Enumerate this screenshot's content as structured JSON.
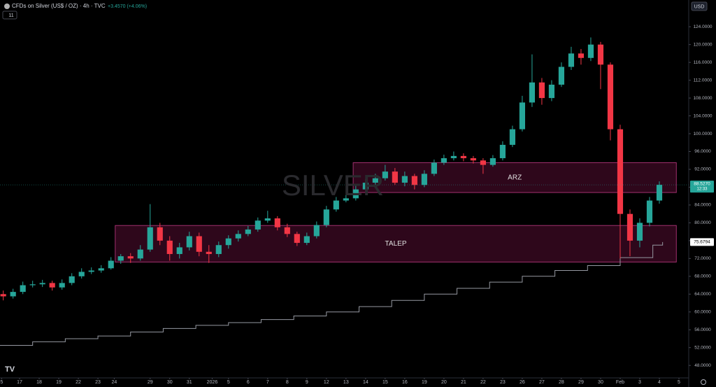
{
  "chart_data": {
    "type": "candlestick",
    "title": "CFDs on Silver (US$ / OZ) · 4h · TVC",
    "change": "+3.4570 (+4.06%)",
    "interval_badge": "11",
    "currency": "USD",
    "watermark": "SILVER",
    "xlim": [
      0,
      211
    ],
    "ylim": [
      45.2,
      130
    ],
    "grid": false,
    "up_color": "#26a69a",
    "down_color": "#f23645",
    "xticks": [
      {
        "value": 0.5,
        "label": "5"
      },
      {
        "value": 6,
        "label": "17"
      },
      {
        "value": 12,
        "label": "18"
      },
      {
        "value": 18,
        "label": "19"
      },
      {
        "value": 24,
        "label": "22"
      },
      {
        "value": 30,
        "label": "23"
      },
      {
        "value": 35,
        "label": "24"
      },
      {
        "value": 46,
        "label": "29"
      },
      {
        "value": 52,
        "label": "30"
      },
      {
        "value": 58,
        "label": "31"
      },
      {
        "value": 65,
        "label": "2026"
      },
      {
        "value": 70,
        "label": "5"
      },
      {
        "value": 76,
        "label": "6"
      },
      {
        "value": 82,
        "label": "7"
      },
      {
        "value": 88,
        "label": "8"
      },
      {
        "value": 94,
        "label": "9"
      },
      {
        "value": 100,
        "label": "12"
      },
      {
        "value": 106,
        "label": "13"
      },
      {
        "value": 112,
        "label": "14"
      },
      {
        "value": 118,
        "label": "15"
      },
      {
        "value": 124,
        "label": "16"
      },
      {
        "value": 130,
        "label": "19"
      },
      {
        "value": 136,
        "label": "20"
      },
      {
        "value": 142,
        "label": "21"
      },
      {
        "value": 148,
        "label": "22"
      },
      {
        "value": 154,
        "label": "23"
      },
      {
        "value": 160,
        "label": "26"
      },
      {
        "value": 166,
        "label": "27"
      },
      {
        "value": 172,
        "label": "28"
      },
      {
        "value": 178,
        "label": "29"
      },
      {
        "value": 184,
        "label": "30"
      },
      {
        "value": 190,
        "label": "Feb"
      },
      {
        "value": 196,
        "label": "3"
      },
      {
        "value": 202,
        "label": "4"
      },
      {
        "value": 208,
        "label": "5"
      }
    ],
    "yticks": [
      {
        "value": 48,
        "label": "48.0000"
      },
      {
        "value": 52,
        "label": "52.0000"
      },
      {
        "value": 56,
        "label": "56.0000"
      },
      {
        "value": 60,
        "label": "60.0000"
      },
      {
        "value": 64,
        "label": "64.0000"
      },
      {
        "value": 68,
        "label": "68.0000"
      },
      {
        "value": 72,
        "label": "72.0000"
      },
      {
        "value": 76,
        "label": "76.0000"
      },
      {
        "value": 80,
        "label": "80.0000"
      },
      {
        "value": 84,
        "label": "84.0000"
      },
      {
        "value": 88,
        "label": "88.0000"
      },
      {
        "value": 92,
        "label": "92.0000"
      },
      {
        "value": 96,
        "label": "96.0000"
      },
      {
        "value": 100,
        "label": "100.0000"
      },
      {
        "value": 104,
        "label": "104.0000"
      },
      {
        "value": 108,
        "label": "108.0000"
      },
      {
        "value": 112,
        "label": "112.0000"
      },
      {
        "value": 116,
        "label": "116.0000"
      },
      {
        "value": 120,
        "label": "120.0000"
      },
      {
        "value": 124,
        "label": "124.0000"
      }
    ],
    "x": [
      1,
      4,
      7,
      10,
      13,
      16,
      19,
      22,
      25,
      28,
      31,
      34,
      37,
      40,
      43,
      46,
      49,
      52,
      55,
      58,
      61,
      64,
      67,
      70,
      73,
      76,
      79,
      82,
      85,
      88,
      91,
      94,
      97,
      100,
      103,
      106,
      109,
      112,
      115,
      118,
      121,
      124,
      127,
      130,
      133,
      136,
      139,
      142,
      145,
      148,
      151,
      154,
      157,
      160,
      163,
      166,
      169,
      172,
      175,
      178,
      181,
      184,
      187,
      190,
      193,
      196,
      199,
      202
    ],
    "open": [
      64,
      63.5,
      64.5,
      66,
      66.2,
      66.5,
      65.5,
      66.5,
      68,
      69,
      69.3,
      69.8,
      71.5,
      72.5,
      72,
      74,
      79,
      76,
      73,
      74.5,
      77,
      73.5,
      73,
      75,
      76.5,
      77.5,
      78.5,
      80.5,
      81,
      79,
      77.5,
      75.5,
      77,
      79.5,
      83,
      85,
      85.5,
      87.5,
      89,
      90,
      91.5,
      89,
      90.5,
      88.5,
      91,
      93.5,
      94.5,
      95,
      94.5,
      94,
      93,
      94.5,
      97.5,
      101,
      107,
      111.5,
      108,
      111,
      115,
      118,
      117,
      120,
      115.5,
      101,
      82,
      76,
      80,
      85
    ],
    "high": [
      64.8,
      65.2,
      66.8,
      67,
      67.2,
      67,
      67.3,
      68.7,
      69.8,
      70,
      70.5,
      72.3,
      73,
      73.2,
      75,
      84.2,
      80,
      77,
      75.5,
      78,
      77.8,
      75,
      75.8,
      77.2,
      78.3,
      79.3,
      81.2,
      82.7,
      81.5,
      79.8,
      78,
      77.8,
      80.3,
      83.8,
      85.8,
      86.3,
      88.3,
      89.8,
      91,
      93,
      92.3,
      91.5,
      91,
      91.8,
      94.2,
      95.3,
      96,
      95.6,
      95,
      94.5,
      95.2,
      98.3,
      101.8,
      108.5,
      117.8,
      112.5,
      112,
      116,
      119.5,
      119,
      121.6,
      120.6,
      116,
      102,
      83,
      81,
      85.8,
      89.3
    ],
    "low": [
      62.6,
      63,
      64,
      65.5,
      65.6,
      64.8,
      65,
      66,
      67.5,
      68.5,
      68.8,
      69.5,
      70.8,
      71,
      71.5,
      73.5,
      75,
      71.5,
      72,
      73.8,
      72.5,
      71,
      72.3,
      74.2,
      75.8,
      77,
      78,
      80,
      78.3,
      76.8,
      74.8,
      75,
      76.5,
      79,
      82.5,
      84.6,
      85,
      87,
      88.3,
      89.5,
      88.5,
      88.2,
      87.5,
      88,
      90.5,
      93,
      94,
      93.8,
      93.3,
      91,
      92.6,
      94,
      97,
      100.5,
      106,
      106.5,
      107.3,
      110.5,
      114.3,
      115.5,
      116.3,
      110,
      98.5,
      72,
      72.5,
      74.5,
      79.2,
      84.3
    ],
    "close": [
      63.5,
      64.5,
      66,
      66.2,
      66.5,
      65.5,
      66.5,
      68,
      69,
      69.3,
      69.8,
      71.5,
      72.5,
      72,
      74,
      79,
      76,
      73,
      74.5,
      77,
      73.5,
      73,
      75,
      76.5,
      77.5,
      78.5,
      80.5,
      81,
      79,
      77.5,
      75.5,
      77,
      79.5,
      83,
      85,
      85.5,
      87.5,
      89,
      90,
      91.5,
      89,
      90.5,
      88.5,
      91,
      93.5,
      94.5,
      95,
      94.5,
      94,
      93,
      94.5,
      97.5,
      101,
      107,
      111.5,
      108,
      111,
      115,
      118,
      117,
      120,
      115.5,
      101,
      82,
      76,
      80,
      85,
      88.527
    ],
    "last_label": "88.5270",
    "countdown": "12:33",
    "series": [
      {
        "type": "line",
        "step": true,
        "color": "#9598a1",
        "x": [
          0,
          10,
          20,
          30,
          40,
          50,
          60,
          70,
          80,
          90,
          100,
          110,
          120,
          130,
          140,
          150,
          160,
          170,
          180,
          190,
          200,
          203
        ],
        "values": [
          52.5,
          53.3,
          54,
          54.6,
          55.5,
          56.3,
          57,
          57.6,
          58.3,
          59.1,
          60,
          61.2,
          62.6,
          64,
          65.3,
          66.7,
          68,
          69.3,
          70.4,
          72.2,
          75,
          75.6794
        ]
      }
    ],
    "annotations": [
      {
        "text": "ARZ",
        "x0": 108.2,
        "x1": 207.2,
        "y0": 86.8,
        "y1": 93.5
      },
      {
        "text": "TALEP",
        "x0": 35.3,
        "x1": 207.2,
        "y0": 71.2,
        "y1": 79.4
      }
    ]
  }
}
